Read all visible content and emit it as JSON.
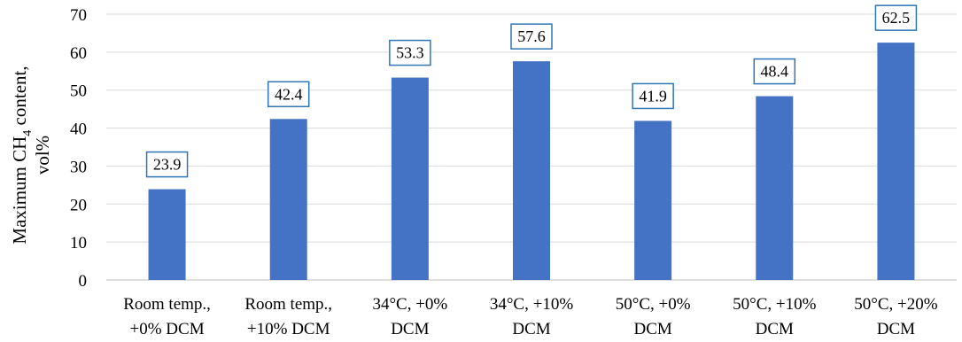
{
  "chart_data": {
    "type": "bar",
    "categories": [
      [
        "Room temp.,",
        "+0% DCM"
      ],
      [
        "Room temp.,",
        "+10% DCM"
      ],
      [
        "34°C, +0%",
        "DCM"
      ],
      [
        "34°C, +10%",
        "DCM"
      ],
      [
        "50°C, +0%",
        "DCM"
      ],
      [
        "50°C, +10%",
        "DCM"
      ],
      [
        "50°C, +20%",
        "DCM"
      ]
    ],
    "values": [
      23.9,
      42.4,
      53.3,
      57.6,
      41.9,
      48.4,
      62.5
    ],
    "data_labels": [
      "23.9",
      "42.4",
      "53.3",
      "57.6",
      "41.9",
      "48.4",
      "62.5"
    ],
    "title": "",
    "xlabel": "",
    "ylabel": {
      "line1_prefix": "Maximum CH",
      "line1_sub": "4",
      "line1_suffix": " content,",
      "line2": "vol%"
    },
    "ylim": [
      0,
      70
    ],
    "yticks": [
      0,
      10,
      20,
      30,
      40,
      50,
      60,
      70
    ],
    "grid": true,
    "legend": "none",
    "colors": {
      "bar": "#4472c4",
      "label_border": "#2e75b6",
      "grid": "#d9d9d9"
    }
  }
}
